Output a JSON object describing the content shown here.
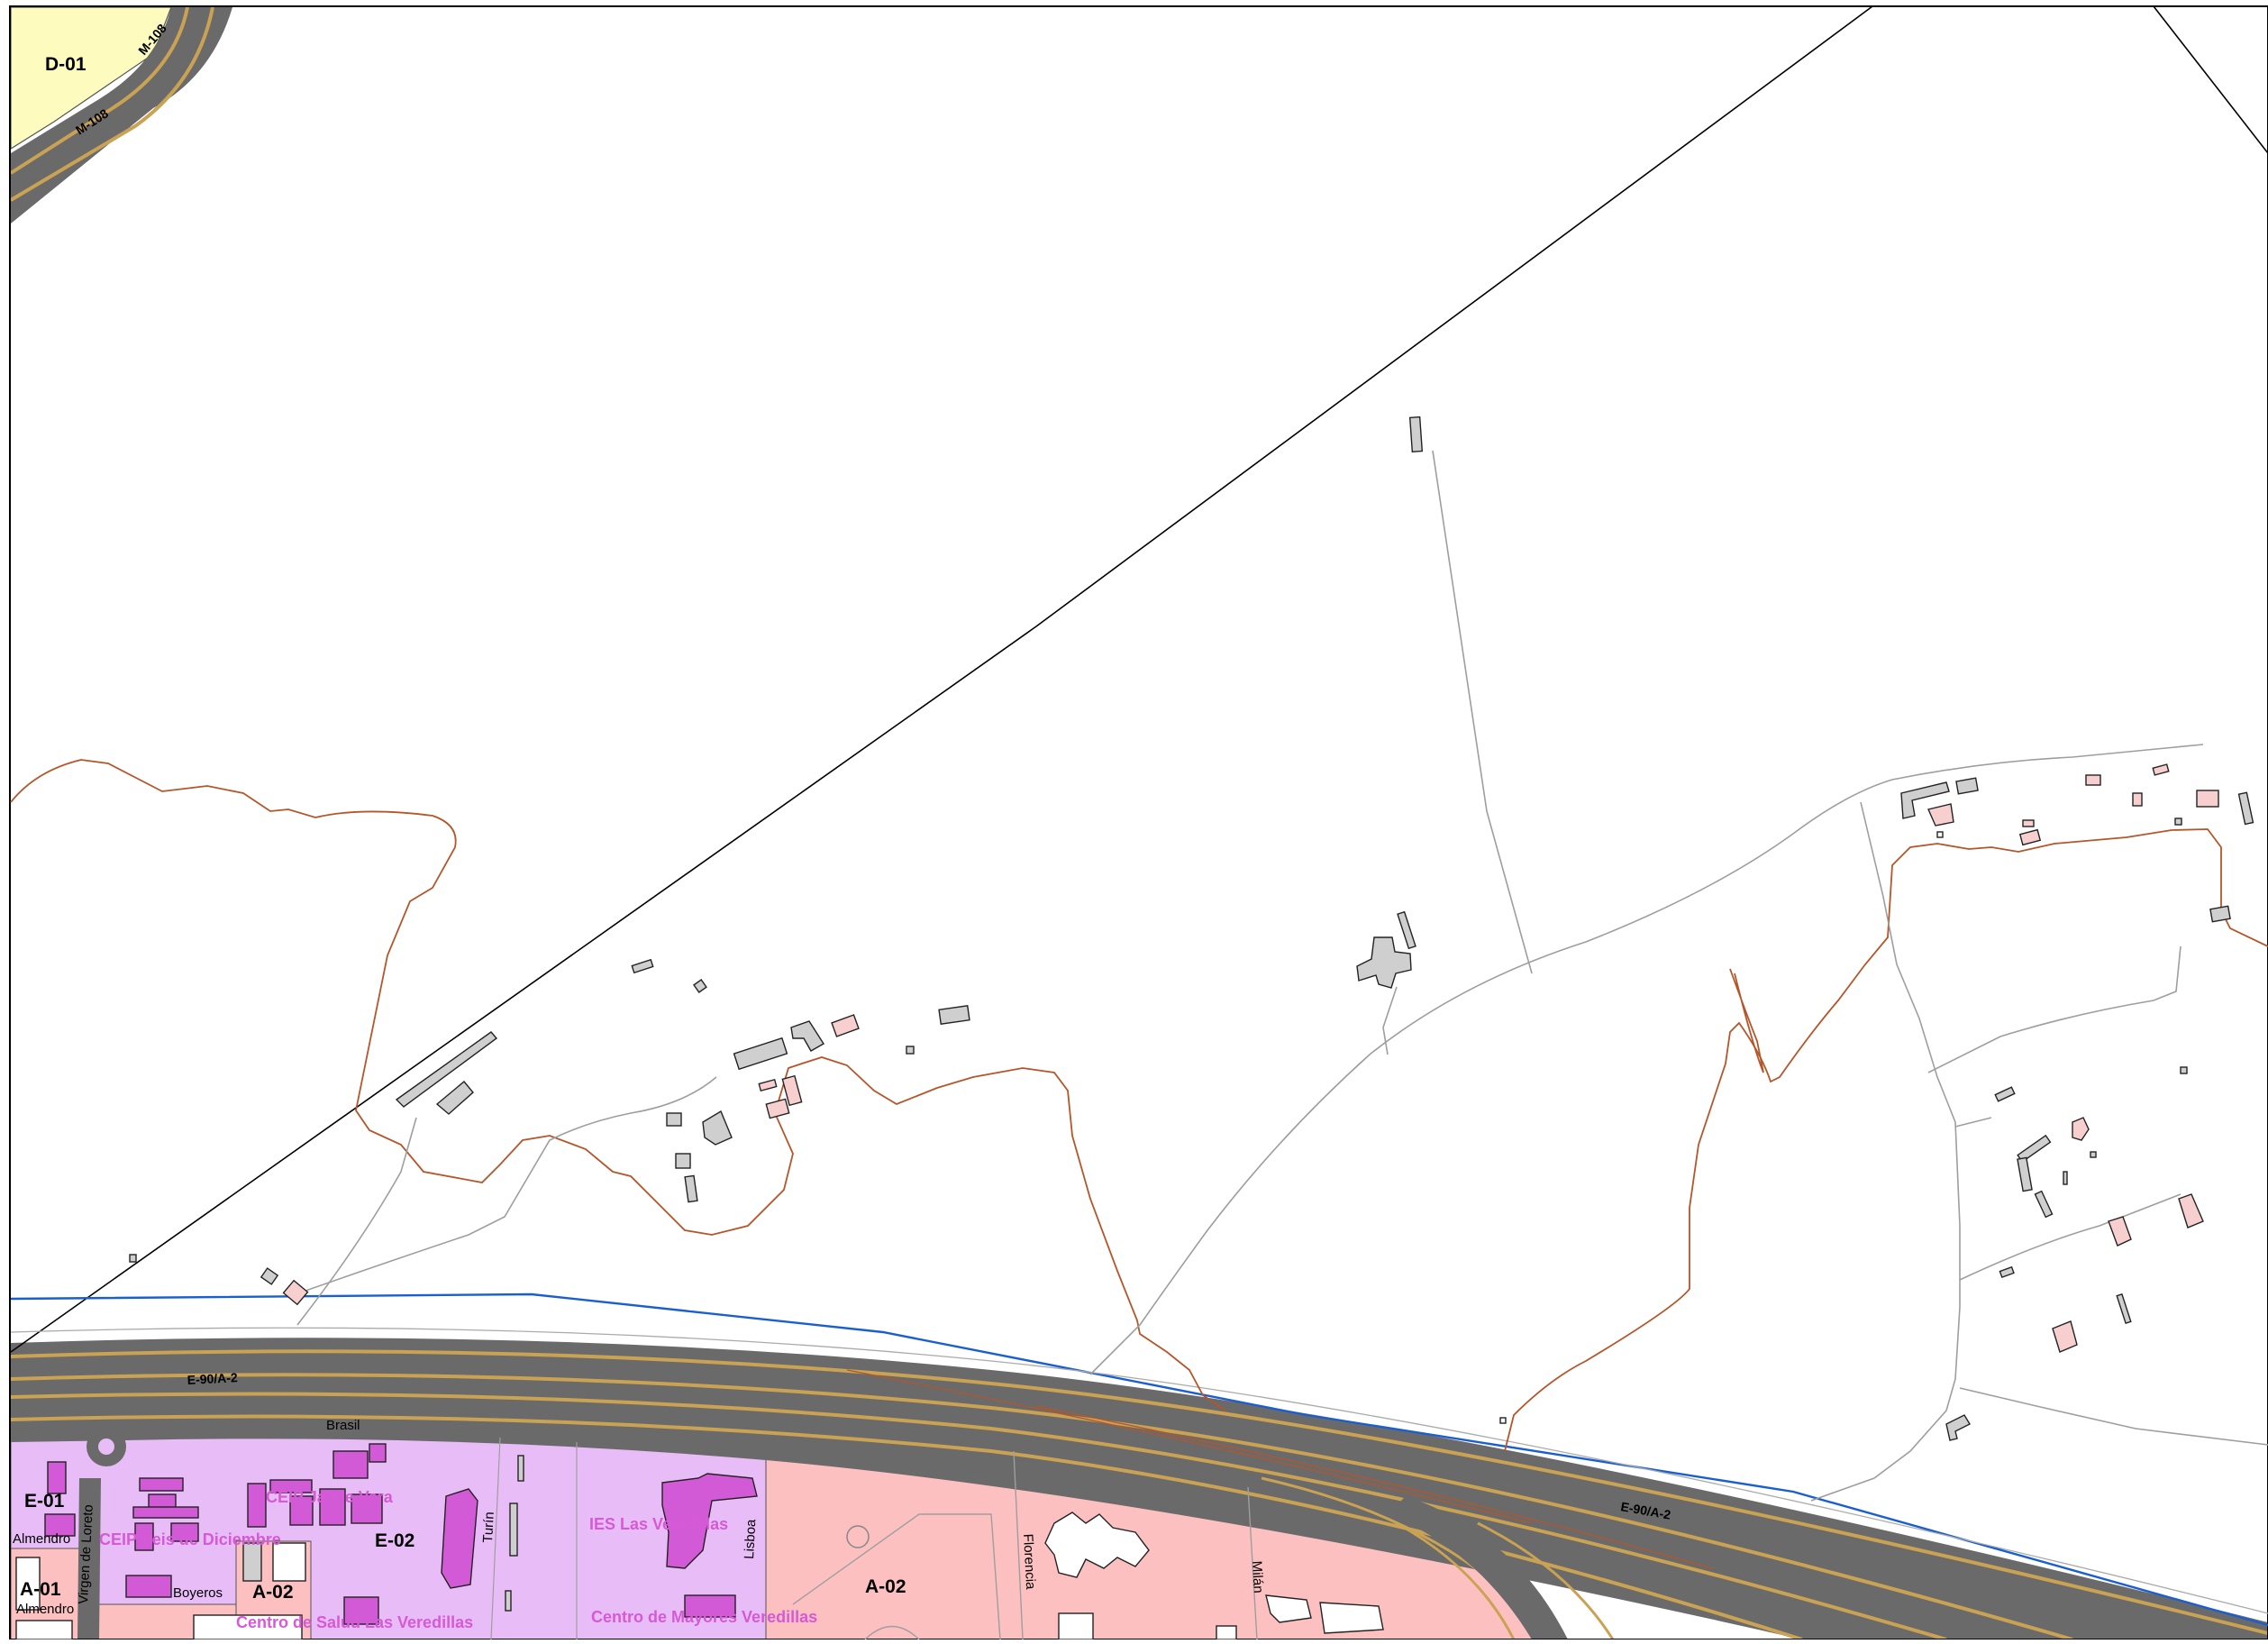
{
  "map": {
    "zones": {
      "d01": "D-01",
      "e01": "E-01",
      "e02": "E-02",
      "a01": "A-01",
      "a02_left": "A-02",
      "a02_center": "A-02"
    },
    "roads": {
      "m108_a": "M-108",
      "m108_b": "M-108",
      "e90_west": "E-90/A-2",
      "e90_east": "E-90/A-2"
    },
    "streets": {
      "brasil": "Brasil",
      "almendro_1": "Almendro",
      "almendro_2": "Almendro",
      "virgen_de_loreto": "Virgen de Loreto",
      "boyeros": "Boyeros",
      "turin": "Turín",
      "lisboa": "Lisboa",
      "florencia": "Florencia",
      "milan": "Milán"
    },
    "facilities": {
      "ceip_jaime_vera": "CEIP Jaime Vera",
      "ceip_seis_de_diciembre": "CEIP Seis de Diciembre",
      "ies_las_veredillas": "IES Las Veredillas",
      "centro_mayores": "Centro de Mayores Veredillas",
      "centro_salud": "Centro de Salud Las Veredillas"
    },
    "colors": {
      "residential": "#fcc0c0",
      "equipment": "#e8bcf7",
      "d_zone": "#fdfbbd",
      "road_dark": "#6a6a6a",
      "road_lane": "#c9a254",
      "boundary_blue": "#1a5fd0",
      "contour_brown": "#b5562a"
    }
  }
}
